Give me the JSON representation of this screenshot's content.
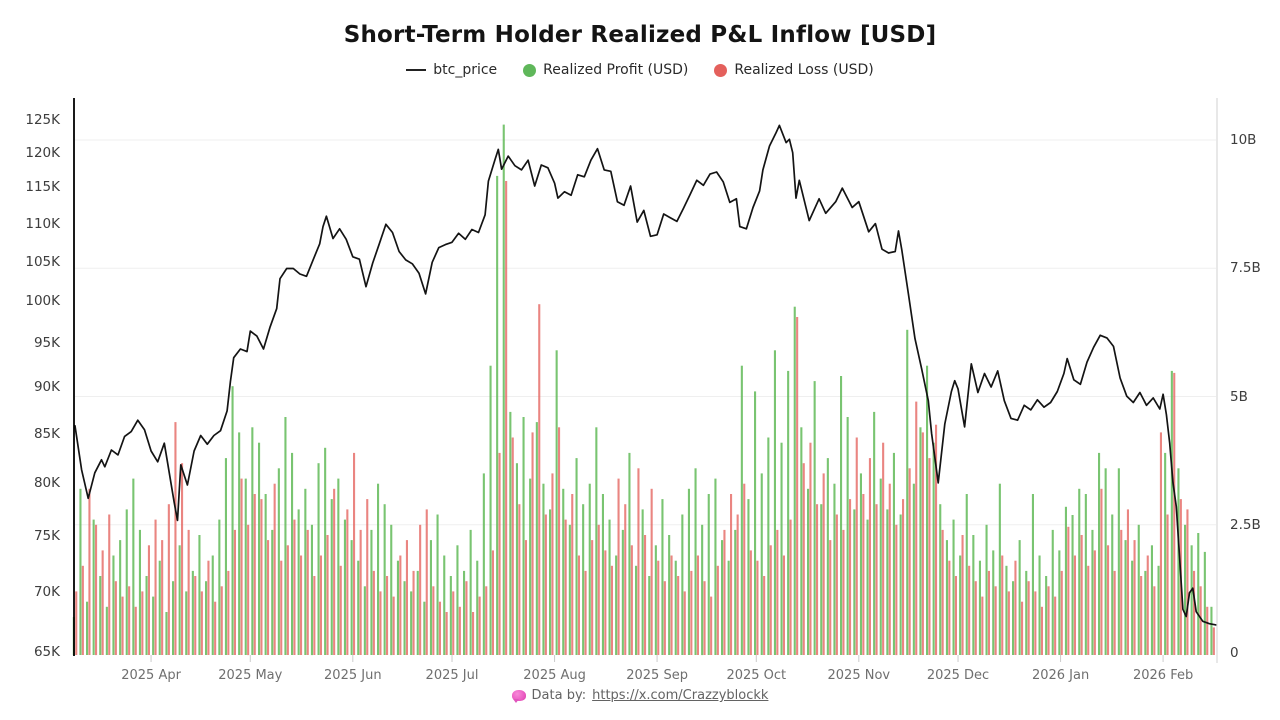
{
  "title": "Short-Term Holder Realized P&L Inflow [USD]",
  "legend": {
    "items": [
      {
        "label": "btc_price",
        "marker": "line",
        "color": "#222222"
      },
      {
        "label": "Realized Profit (USD)",
        "marker": "dot",
        "color": "#5fb75a"
      },
      {
        "label": "Realized Loss (USD)",
        "marker": "dot",
        "color": "#e4605c"
      }
    ]
  },
  "footer": {
    "icon": "pink-brain-icon",
    "prefix": "Data by:",
    "link_text": "https://x.com/Crazzyblockk"
  },
  "colors": {
    "profit": "#62ba58",
    "loss": "#e4635e",
    "price_line": "#141414",
    "grid": "#efefef",
    "left_axis_line": "#000000",
    "right_axis_line": "#d9d9d9",
    "tick": "#cccccc",
    "background": "#ffffff"
  },
  "chart_data": {
    "type": "line+bar",
    "title": "Short-Term Holder Realized P&L Inflow [USD]",
    "left_axis": {
      "scale": "log",
      "unit": "K USD",
      "min": 65,
      "max": 125,
      "ticks": [
        {
          "v": 65,
          "label": "65K"
        },
        {
          "v": 70,
          "label": "70K"
        },
        {
          "v": 75,
          "label": "75K"
        },
        {
          "v": 80,
          "label": "80K"
        },
        {
          "v": 85,
          "label": "85K"
        },
        {
          "v": 90,
          "label": "90K"
        },
        {
          "v": 95,
          "label": "95K"
        },
        {
          "v": 100,
          "label": "100K"
        },
        {
          "v": 105,
          "label": "105K"
        },
        {
          "v": 110,
          "label": "110K"
        },
        {
          "v": 115,
          "label": "115K"
        },
        {
          "v": 120,
          "label": "120K"
        },
        {
          "v": 125,
          "label": "125K"
        }
      ]
    },
    "right_axis": {
      "scale": "linear",
      "unit": "B USD",
      "min": 0,
      "max": 10.5,
      "ticks": [
        {
          "v": 0,
          "label": "0"
        },
        {
          "v": 2.5,
          "label": "2.5B"
        },
        {
          "v": 5,
          "label": "5B"
        },
        {
          "v": 7.5,
          "label": "7.5B"
        },
        {
          "v": 10,
          "label": "10B"
        }
      ]
    },
    "x_axis": {
      "start_date": "2025-03-09",
      "end_date": "2026-02-17",
      "span_days": 345,
      "months": [
        {
          "label": "2025 Apr",
          "day": 23
        },
        {
          "label": "2025 May",
          "day": 53
        },
        {
          "label": "2025 Jun",
          "day": 84
        },
        {
          "label": "2025 Jul",
          "day": 114
        },
        {
          "label": "2025 Aug",
          "day": 145
        },
        {
          "label": "2025 Sep",
          "day": 176
        },
        {
          "label": "2025 Oct",
          "day": 206
        },
        {
          "label": "2025 Nov",
          "day": 237
        },
        {
          "label": "2025 Dec",
          "day": 267
        },
        {
          "label": "2026 Jan",
          "day": 298
        },
        {
          "label": "2026 Feb",
          "day": 329
        }
      ]
    },
    "btc_price_points": [
      [
        0,
        85.8
      ],
      [
        2,
        81.3
      ],
      [
        4,
        78.5
      ],
      [
        6,
        81.0
      ],
      [
        8,
        82.3
      ],
      [
        9,
        81.6
      ],
      [
        11,
        83.3
      ],
      [
        13,
        82.8
      ],
      [
        15,
        84.7
      ],
      [
        17,
        85.2
      ],
      [
        19,
        86.4
      ],
      [
        21,
        85.4
      ],
      [
        23,
        83.2
      ],
      [
        25,
        82.1
      ],
      [
        27,
        84.0
      ],
      [
        28,
        82.0
      ],
      [
        30,
        78.1
      ],
      [
        31,
        76.4
      ],
      [
        32,
        81.8
      ],
      [
        34,
        79.8
      ],
      [
        36,
        83.2
      ],
      [
        38,
        84.8
      ],
      [
        40,
        83.9
      ],
      [
        42,
        84.8
      ],
      [
        44,
        85.3
      ],
      [
        46,
        87.4
      ],
      [
        47,
        90.6
      ],
      [
        48,
        93.3
      ],
      [
        50,
        94.3
      ],
      [
        52,
        94.0
      ],
      [
        53,
        96.4
      ],
      [
        55,
        95.8
      ],
      [
        57,
        94.3
      ],
      [
        59,
        96.9
      ],
      [
        61,
        99.1
      ],
      [
        62,
        102.8
      ],
      [
        64,
        104.1
      ],
      [
        66,
        104.1
      ],
      [
        68,
        103.4
      ],
      [
        70,
        103.1
      ],
      [
        72,
        105.2
      ],
      [
        74,
        107.3
      ],
      [
        75,
        109.6
      ],
      [
        76,
        111.0
      ],
      [
        78,
        108.0
      ],
      [
        80,
        109.3
      ],
      [
        82,
        107.9
      ],
      [
        84,
        105.6
      ],
      [
        86,
        105.3
      ],
      [
        88,
        101.8
      ],
      [
        90,
        104.8
      ],
      [
        92,
        107.3
      ],
      [
        94,
        109.9
      ],
      [
        96,
        108.8
      ],
      [
        98,
        106.3
      ],
      [
        100,
        105.2
      ],
      [
        102,
        104.7
      ],
      [
        104,
        103.5
      ],
      [
        106,
        100.9
      ],
      [
        108,
        104.9
      ],
      [
        110,
        106.8
      ],
      [
        112,
        107.2
      ],
      [
        114,
        107.5
      ],
      [
        116,
        108.7
      ],
      [
        118,
        107.9
      ],
      [
        120,
        109.2
      ],
      [
        122,
        108.8
      ],
      [
        124,
        111.2
      ],
      [
        125,
        115.9
      ],
      [
        127,
        119.0
      ],
      [
        128,
        120.5
      ],
      [
        129,
        117.6
      ],
      [
        131,
        119.5
      ],
      [
        133,
        118.1
      ],
      [
        135,
        117.5
      ],
      [
        137,
        118.9
      ],
      [
        139,
        115.2
      ],
      [
        141,
        118.2
      ],
      [
        143,
        117.8
      ],
      [
        145,
        115.6
      ],
      [
        146,
        113.5
      ],
      [
        148,
        114.4
      ],
      [
        150,
        113.9
      ],
      [
        152,
        116.8
      ],
      [
        154,
        116.5
      ],
      [
        156,
        118.9
      ],
      [
        158,
        120.6
      ],
      [
        160,
        117.5
      ],
      [
        162,
        117.3
      ],
      [
        164,
        113.0
      ],
      [
        166,
        112.5
      ],
      [
        168,
        115.2
      ],
      [
        170,
        110.2
      ],
      [
        172,
        111.8
      ],
      [
        174,
        108.3
      ],
      [
        176,
        108.5
      ],
      [
        178,
        111.3
      ],
      [
        180,
        110.8
      ],
      [
        182,
        110.3
      ],
      [
        184,
        112.1
      ],
      [
        186,
        114.0
      ],
      [
        188,
        116.0
      ],
      [
        190,
        115.3
      ],
      [
        192,
        116.9
      ],
      [
        194,
        117.2
      ],
      [
        196,
        115.8
      ],
      [
        198,
        112.9
      ],
      [
        200,
        113.4
      ],
      [
        201,
        109.6
      ],
      [
        203,
        109.3
      ],
      [
        205,
        112.2
      ],
      [
        207,
        114.5
      ],
      [
        208,
        117.5
      ],
      [
        210,
        121.0
      ],
      [
        212,
        123.0
      ],
      [
        213,
        124.1
      ],
      [
        215,
        121.5
      ],
      [
        216,
        122.0
      ],
      [
        217,
        120.0
      ],
      [
        218,
        113.5
      ],
      [
        219,
        116.0
      ],
      [
        222,
        110.4
      ],
      [
        225,
        113.4
      ],
      [
        227,
        111.4
      ],
      [
        230,
        113.0
      ],
      [
        232,
        114.9
      ],
      [
        235,
        112.2
      ],
      [
        237,
        113.0
      ],
      [
        240,
        108.9
      ],
      [
        242,
        110.0
      ],
      [
        244,
        106.6
      ],
      [
        246,
        106.1
      ],
      [
        248,
        106.3
      ],
      [
        249,
        109.0
      ],
      [
        250,
        106.5
      ],
      [
        252,
        100.9
      ],
      [
        254,
        95.5
      ],
      [
        256,
        92.0
      ],
      [
        258,
        88.5
      ],
      [
        259,
        85.0
      ],
      [
        260,
        82.5
      ],
      [
        261,
        80.0
      ],
      [
        263,
        86.0
      ],
      [
        265,
        89.5
      ],
      [
        266,
        90.7
      ],
      [
        267,
        89.8
      ],
      [
        269,
        85.7
      ],
      [
        271,
        92.6
      ],
      [
        273,
        89.4
      ],
      [
        275,
        91.5
      ],
      [
        277,
        90.0
      ],
      [
        279,
        91.8
      ],
      [
        281,
        88.5
      ],
      [
        283,
        86.6
      ],
      [
        285,
        86.4
      ],
      [
        287,
        88.0
      ],
      [
        289,
        87.5
      ],
      [
        291,
        88.6
      ],
      [
        293,
        87.8
      ],
      [
        295,
        88.3
      ],
      [
        297,
        89.5
      ],
      [
        299,
        91.5
      ],
      [
        300,
        93.2
      ],
      [
        302,
        90.8
      ],
      [
        304,
        90.3
      ],
      [
        306,
        92.8
      ],
      [
        308,
        94.5
      ],
      [
        310,
        95.9
      ],
      [
        312,
        95.6
      ],
      [
        314,
        94.6
      ],
      [
        316,
        91.0
      ],
      [
        318,
        89.0
      ],
      [
        320,
        88.3
      ],
      [
        322,
        89.4
      ],
      [
        324,
        88.0
      ],
      [
        326,
        88.8
      ],
      [
        328,
        87.6
      ],
      [
        329,
        89.2
      ],
      [
        330,
        87.0
      ],
      [
        331,
        84.0
      ],
      [
        332,
        80.0
      ],
      [
        333,
        77.7
      ],
      [
        334,
        73.0
      ],
      [
        335,
        68.5
      ],
      [
        336,
        67.9
      ],
      [
        337,
        69.9
      ],
      [
        338,
        70.3
      ],
      [
        339,
        68.3
      ],
      [
        341,
        67.5
      ],
      [
        343,
        67.3
      ],
      [
        345,
        67.2
      ]
    ],
    "bars_day_step": 2,
    "realized_profit_b": [
      0.7,
      3.2,
      1.0,
      2.6,
      1.5,
      0.9,
      1.9,
      2.2,
      2.8,
      3.4,
      2.4,
      1.5,
      1.1,
      1.8,
      0.8,
      1.4,
      2.1,
      1.2,
      1.6,
      2.3,
      1.4,
      1.9,
      2.6,
      3.8,
      5.2,
      4.3,
      3.4,
      4.4,
      4.1,
      3.1,
      2.4,
      3.6,
      4.6,
      3.9,
      2.8,
      3.2,
      2.5,
      3.7,
      4.0,
      3.0,
      3.4,
      2.6,
      2.2,
      1.8,
      1.3,
      2.4,
      3.3,
      2.9,
      2.5,
      1.8,
      1.4,
      1.2,
      1.6,
      1.0,
      2.2,
      2.7,
      1.9,
      1.5,
      2.1,
      1.6,
      2.4,
      1.8,
      3.5,
      5.6,
      9.3,
      10.3,
      4.7,
      3.7,
      4.6,
      3.4,
      4.5,
      3.3,
      2.8,
      5.9,
      3.2,
      2.5,
      3.8,
      2.9,
      3.3,
      4.4,
      3.1,
      2.6,
      1.9,
      2.4,
      3.9,
      1.7,
      2.8,
      1.5,
      2.1,
      3.0,
      2.3,
      1.8,
      2.7,
      3.2,
      3.6,
      2.5,
      3.1,
      3.4,
      2.2,
      1.8,
      2.4,
      5.6,
      3.0,
      5.1,
      3.5,
      4.2,
      5.9,
      4.1,
      5.5,
      6.75,
      4.4,
      3.2,
      5.3,
      2.9,
      3.8,
      3.3,
      5.4,
      4.6,
      2.8,
      3.5,
      2.6,
      4.7,
      3.4,
      2.8,
      3.9,
      2.7,
      6.3,
      3.3,
      4.4,
      5.6,
      4.1,
      2.9,
      2.2,
      2.6,
      1.9,
      3.1,
      2.3,
      1.8,
      2.5,
      2.0,
      3.3,
      1.7,
      1.4,
      2.2,
      1.6,
      3.1,
      1.9,
      1.5,
      2.4,
      2.0,
      2.85,
      2.69,
      3.2,
      3.1,
      2.4,
      3.9,
      3.6,
      2.7,
      3.6,
      2.2,
      1.8,
      2.5,
      1.6,
      2.1,
      1.7,
      3.9,
      5.5,
      3.6,
      2.5,
      2.1,
      2.34,
      1.97,
      0.9
    ],
    "realized_loss_b": [
      1.2,
      1.7,
      3.2,
      2.5,
      2.0,
      2.7,
      1.4,
      1.1,
      1.3,
      0.9,
      1.2,
      2.1,
      2.6,
      2.2,
      2.9,
      4.5,
      3.7,
      2.4,
      1.5,
      1.2,
      1.8,
      1.0,
      1.3,
      1.6,
      2.4,
      3.4,
      2.5,
      3.1,
      3.0,
      2.2,
      3.3,
      1.8,
      2.1,
      2.6,
      1.9,
      2.4,
      1.5,
      1.9,
      2.3,
      3.2,
      1.7,
      2.8,
      3.9,
      2.4,
      3.0,
      1.6,
      1.2,
      1.5,
      1.1,
      1.9,
      2.2,
      1.6,
      2.5,
      2.8,
      1.3,
      1.0,
      0.8,
      1.2,
      0.9,
      1.4,
      0.8,
      1.1,
      1.3,
      2.0,
      3.9,
      9.2,
      4.2,
      2.9,
      2.2,
      4.3,
      6.8,
      2.7,
      3.5,
      4.4,
      2.6,
      3.1,
      1.9,
      1.6,
      2.2,
      2.5,
      2.0,
      1.7,
      3.4,
      2.9,
      2.1,
      3.6,
      2.3,
      3.2,
      1.8,
      1.4,
      1.9,
      1.5,
      1.2,
      1.6,
      1.9,
      1.4,
      1.1,
      1.7,
      2.4,
      3.1,
      2.7,
      3.3,
      2.0,
      1.8,
      1.5,
      2.1,
      2.4,
      1.9,
      2.6,
      6.55,
      3.7,
      4.1,
      2.9,
      3.5,
      2.2,
      2.7,
      2.4,
      3.0,
      4.2,
      3.1,
      3.8,
      2.9,
      4.1,
      3.3,
      2.5,
      3.0,
      3.6,
      4.9,
      4.3,
      3.8,
      4.45,
      2.4,
      1.8,
      1.5,
      2.3,
      1.7,
      1.4,
      1.1,
      1.6,
      1.3,
      1.9,
      1.2,
      1.8,
      1.0,
      1.4,
      1.2,
      0.9,
      1.3,
      1.1,
      1.6,
      2.46,
      1.9,
      2.3,
      1.7,
      2.0,
      3.2,
      2.1,
      1.6,
      2.4,
      2.8,
      2.2,
      1.5,
      1.9,
      1.3,
      4.3,
      2.7,
      5.46,
      3.0,
      2.8,
      1.6,
      1.3,
      0.9,
      0.5
    ]
  }
}
